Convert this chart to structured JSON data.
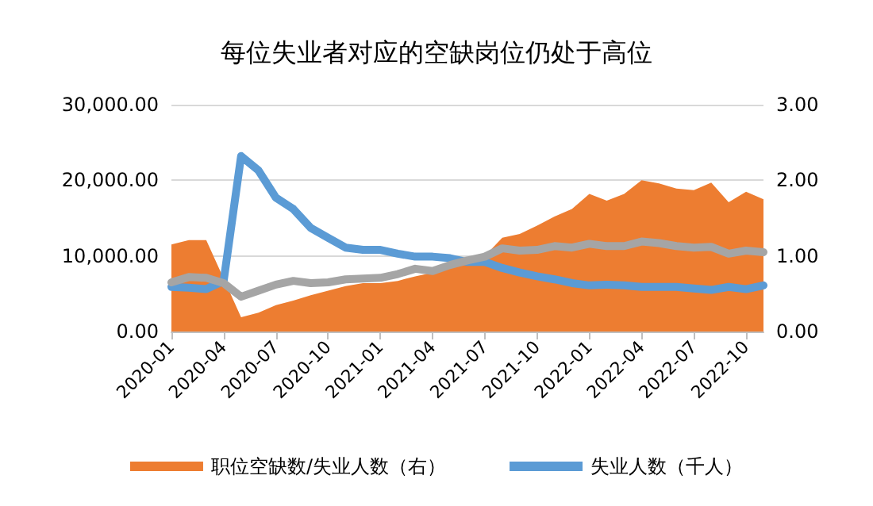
{
  "chart_data": {
    "type": "line",
    "title": "每位失业者对应的空缺岗位仍处于高位",
    "categories": [
      "2020-01",
      null,
      null,
      "2020-04",
      null,
      null,
      "2020-07",
      null,
      null,
      "2020-10",
      null,
      null,
      "2021-01",
      null,
      null,
      "2021-04",
      null,
      null,
      "2021-07",
      null,
      null,
      "2021-10",
      null,
      null,
      "2022-01",
      null,
      null,
      "2022-04",
      null,
      null,
      "2022-07",
      null,
      null,
      "2022-10",
      null
    ],
    "series": [
      {
        "name": "职位空缺数/失业人数（右）",
        "type": "area",
        "axis": "y2",
        "color": "#ed7d31",
        "values": [
          1.15,
          1.21,
          1.21,
          0.7,
          0.19,
          0.25,
          0.35,
          0.41,
          0.48,
          0.54,
          0.6,
          0.64,
          0.64,
          0.67,
          0.73,
          0.78,
          0.86,
          0.96,
          1.0,
          1.24,
          1.29,
          1.4,
          1.52,
          1.62,
          1.82,
          1.73,
          1.82,
          2.0,
          1.96,
          1.89,
          1.87,
          1.97,
          1.71,
          1.85,
          1.75
        ]
      },
      {
        "name": "失业人数（千人）",
        "color": "#5b9bd5",
        "values": [
          5900,
          5800,
          5600,
          6700,
          23200,
          21300,
          17700,
          16200,
          13700,
          12400,
          11100,
          10800,
          10800,
          10300,
          9900,
          9900,
          9700,
          9200,
          9200,
          8400,
          7800,
          7300,
          6900,
          6400,
          6100,
          6200,
          6100,
          5900,
          5900,
          5900,
          5700,
          5500,
          5900,
          5600,
          6100
        ]
      },
      {
        "axis": "y2",
        "color": "#a5a5a5",
        "values": [
          0.65,
          0.72,
          0.71,
          0.64,
          0.46,
          0.54,
          0.62,
          0.67,
          0.64,
          0.65,
          0.69,
          0.7,
          0.71,
          0.76,
          0.83,
          0.8,
          0.88,
          0.94,
          0.99,
          1.1,
          1.07,
          1.08,
          1.13,
          1.11,
          1.16,
          1.13,
          1.13,
          1.19,
          1.17,
          1.13,
          1.11,
          1.12,
          1.03,
          1.07,
          1.05
        ]
      }
    ],
    "ylim": [
      0,
      30000
    ],
    "yticks": [
      {
        "value": 0,
        "label": "0.00"
      },
      {
        "value": 10000,
        "label": "10,000.00"
      },
      {
        "value": 20000,
        "label": "20,000.00"
      },
      {
        "value": 30000,
        "label": "30,000.00"
      }
    ],
    "y2lim": [
      0,
      3
    ],
    "y2ticks": [
      {
        "value": 0,
        "label": "0.00"
      },
      {
        "value": 1,
        "label": "1.00"
      },
      {
        "value": 2,
        "label": "2.00"
      },
      {
        "value": 3,
        "label": "3.00"
      }
    ],
    "grid": "y",
    "legend": "bottom",
    "marker": "none",
    "line_style": "solid"
  }
}
